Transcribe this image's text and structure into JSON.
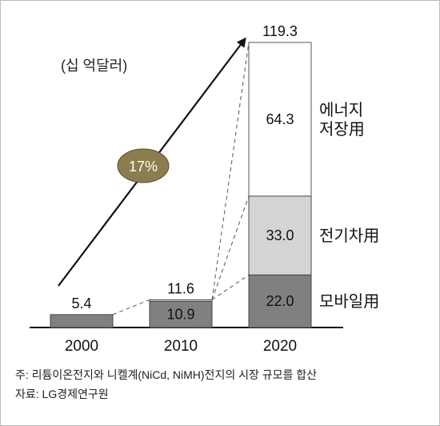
{
  "chart_data": {
    "type": "bar",
    "stacked": true,
    "unit": "(십 억달러)",
    "categories": [
      "2000",
      "2010",
      "2020"
    ],
    "series": [
      {
        "name": "모바일用",
        "values": [
          5.4,
          10.9,
          22.0
        ],
        "color": "#808080"
      },
      {
        "name": "전기차用",
        "values": [
          0,
          0.7,
          33.0
        ],
        "color": "#d4d4d4"
      },
      {
        "name": "에너지 저장用",
        "values": [
          0,
          0,
          64.3
        ],
        "color": "#ffffff"
      }
    ],
    "totals": [
      5.4,
      11.6,
      119.3
    ],
    "segment_labels": {
      "2010": [
        "10.9"
      ],
      "2020": [
        "22.0",
        "33.0",
        "64.3"
      ]
    },
    "total_labels": [
      "5.4",
      "11.6",
      "119.3"
    ],
    "series_labels": [
      [
        "모바일用"
      ],
      [
        "전기차用"
      ],
      [
        "에너지",
        "저장用"
      ]
    ],
    "growth_label": "17%",
    "growth_ellipse_color": "#8b7d4f",
    "ylim": [
      0,
      125
    ],
    "grid": false,
    "legend": "none"
  },
  "notes": {
    "line1": "주: 리튬이온전지와 니켈계(NiCd, NiMH)전지의 시장 규모를 합산",
    "line2": "자료: LG경제연구원"
  }
}
